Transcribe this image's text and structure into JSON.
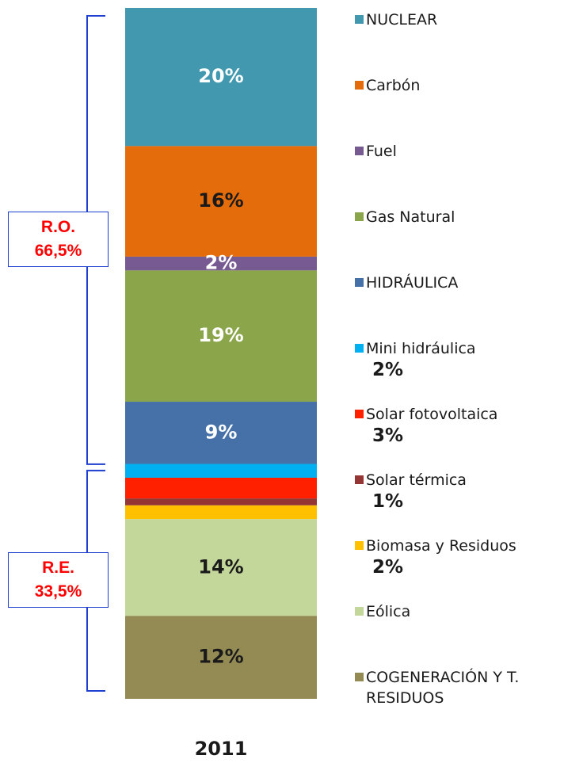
{
  "chart_data": {
    "type": "stacked_bar",
    "categories": [
      "2011"
    ],
    "series": [
      {
        "name": "NUCLEAR",
        "color": "#4198af",
        "values": [
          20
        ],
        "value_labels": [
          "20%"
        ],
        "label_color": "#ffffff"
      },
      {
        "name": "Carbón",
        "color": "#e46c0a",
        "values": [
          16
        ],
        "value_labels": [
          "16%"
        ],
        "label_color": "#1a1a1a"
      },
      {
        "name": "Fuel",
        "color": "#775a91",
        "values": [
          2
        ],
        "value_labels": [
          "2%"
        ],
        "label_color": "#ffffff"
      },
      {
        "name": "Gas Natural",
        "color": "#8ba54a",
        "values": [
          19
        ],
        "value_labels": [
          "19%"
        ],
        "label_color": "#ffffff"
      },
      {
        "name": "HIDRÁULICA",
        "color": "#4571a8",
        "values": [
          9
        ],
        "value_labels": [
          "9%"
        ],
        "label_color": "#ffffff"
      },
      {
        "name": "Mini hidráulica",
        "color": "#00b0f0",
        "values": [
          2
        ],
        "value_labels": [
          "2%"
        ],
        "label_in_legend": true
      },
      {
        "name": "Solar fotovoltaica",
        "color": "#ff2000",
        "values": [
          3
        ],
        "value_labels": [
          "3%"
        ],
        "label_in_legend": true
      },
      {
        "name": "Solar térmica",
        "color": "#963634",
        "values": [
          1
        ],
        "value_labels": [
          "1%"
        ],
        "label_in_legend": true
      },
      {
        "name": "Biomasa y Residuos",
        "color": "#ffc000",
        "values": [
          2
        ],
        "value_labels": [
          "2%"
        ],
        "label_in_legend": true
      },
      {
        "name": "Eólica",
        "color": "#c4d79b",
        "values": [
          14
        ],
        "value_labels": [
          "14%"
        ],
        "label_color": "#1a1a1a"
      },
      {
        "name": "COGENERACIÓN Y T. RESIDUOS",
        "color": "#948a54",
        "values": [
          12
        ],
        "value_labels": [
          "12%"
        ],
        "label_color": "#1a1a1a"
      }
    ],
    "annotations": [
      {
        "label": "R.O.",
        "value": 66.5,
        "value_label": "66,5%",
        "side": "top"
      },
      {
        "label": "R.E.",
        "value": 33.5,
        "value_label": "33,5%",
        "side": "bottom"
      }
    ]
  }
}
